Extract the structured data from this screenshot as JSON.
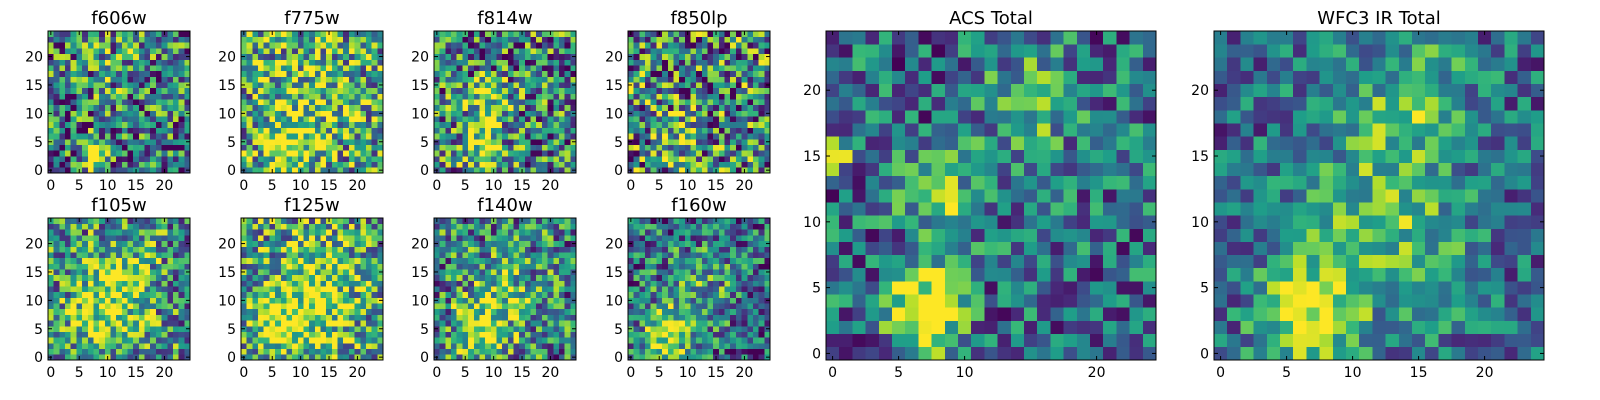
{
  "figure": {
    "background": "#ffffff",
    "colormap": "viridis"
  },
  "chart_data": [
    {
      "type": "heatmap",
      "title": "f606w",
      "grid": [
        25,
        25
      ],
      "xticks": [
        0,
        5,
        10,
        15,
        20
      ],
      "yticks": [
        0,
        5,
        10,
        15,
        20
      ],
      "xlim": [
        -0.5,
        24.5
      ],
      "ylim": [
        -0.5,
        24.5
      ],
      "seed": 11,
      "blobs": [
        {
          "x": 7.5,
          "y": 2.5,
          "sx": 1.2,
          "sy": 2.0,
          "amp": 0.95
        },
        {
          "x": 12,
          "y": 18,
          "sx": 5,
          "sy": 4,
          "amp": 0.2
        }
      ],
      "base": 0.4,
      "noise": 0.5,
      "cmin": 0.0,
      "cmax": 1.0
    },
    {
      "type": "heatmap",
      "title": "f775w",
      "grid": [
        25,
        25
      ],
      "xticks": [
        0,
        5,
        10,
        15,
        20
      ],
      "yticks": [
        0,
        5,
        10,
        15,
        20
      ],
      "xlim": [
        -0.5,
        24.5
      ],
      "ylim": [
        -0.5,
        24.5
      ],
      "seed": 23,
      "blobs": [
        {
          "x": 8,
          "y": 4,
          "sx": 3,
          "sy": 4,
          "amp": 0.4
        },
        {
          "x": 12,
          "y": 13,
          "sx": 7,
          "sy": 8,
          "amp": 0.2
        }
      ],
      "base": 0.55,
      "noise": 0.5,
      "cmin": 0.0,
      "cmax": 1.0
    },
    {
      "type": "heatmap",
      "title": "f814w",
      "grid": [
        25,
        25
      ],
      "xticks": [
        0,
        5,
        10,
        15,
        20
      ],
      "yticks": [
        0,
        5,
        10,
        15,
        20
      ],
      "xlim": [
        -0.5,
        24.5
      ],
      "ylim": [
        -0.5,
        24.5
      ],
      "seed": 37,
      "blobs": [
        {
          "x": 8,
          "y": 4,
          "sx": 2.5,
          "sy": 3.5,
          "amp": 0.5
        },
        {
          "x": 9,
          "y": 12,
          "sx": 3,
          "sy": 3,
          "amp": 0.3
        }
      ],
      "base": 0.45,
      "noise": 0.5,
      "cmin": 0.0,
      "cmax": 1.0
    },
    {
      "type": "heatmap",
      "title": "f850lp",
      "grid": [
        25,
        25
      ],
      "xticks": [
        0,
        5,
        10,
        15,
        20
      ],
      "yticks": [
        0,
        5,
        10,
        15,
        20
      ],
      "xlim": [
        -0.5,
        24.5
      ],
      "ylim": [
        -0.5,
        24.5
      ],
      "seed": 41,
      "blobs": [
        {
          "x": 8,
          "y": 5,
          "sx": 3,
          "sy": 4,
          "amp": 0.3
        },
        {
          "x": 0,
          "y": 15,
          "sx": 0.8,
          "sy": 0.8,
          "amp": 0.6
        }
      ],
      "base": 0.45,
      "noise": 0.55,
      "cmin": 0.0,
      "cmax": 1.0
    },
    {
      "type": "heatmap",
      "title": "f105w",
      "grid": [
        25,
        25
      ],
      "xticks": [
        0,
        5,
        10,
        15,
        20
      ],
      "yticks": [
        0,
        5,
        10,
        15,
        20
      ],
      "xlim": [
        -0.5,
        24.5
      ],
      "ylim": [
        -0.5,
        24.5
      ],
      "seed": 53,
      "blobs": [
        {
          "x": 9,
          "y": 7,
          "sx": 4,
          "sy": 5,
          "amp": 0.35
        },
        {
          "x": 13,
          "y": 14,
          "sx": 4,
          "sy": 5,
          "amp": 0.3
        }
      ],
      "base": 0.5,
      "noise": 0.45,
      "cmin": 0.0,
      "cmax": 1.0
    },
    {
      "type": "heatmap",
      "title": "f125w",
      "grid": [
        25,
        25
      ],
      "xticks": [
        0,
        5,
        10,
        15,
        20
      ],
      "yticks": [
        0,
        5,
        10,
        15,
        20
      ],
      "xlim": [
        -0.5,
        24.5
      ],
      "ylim": [
        -0.5,
        24.5
      ],
      "seed": 67,
      "blobs": [
        {
          "x": 8,
          "y": 6,
          "sx": 5,
          "sy": 6,
          "amp": 0.3
        },
        {
          "x": 14,
          "y": 13,
          "sx": 5,
          "sy": 6,
          "amp": 0.25
        }
      ],
      "base": 0.55,
      "noise": 0.45,
      "cmin": 0.0,
      "cmax": 1.0
    },
    {
      "type": "heatmap",
      "title": "f140w",
      "grid": [
        25,
        25
      ],
      "xticks": [
        0,
        5,
        10,
        15,
        20
      ],
      "yticks": [
        0,
        5,
        10,
        15,
        20
      ],
      "xlim": [
        -0.5,
        24.5
      ],
      "ylim": [
        -0.5,
        24.5
      ],
      "seed": 79,
      "blobs": [
        {
          "x": 7,
          "y": 4,
          "sx": 3,
          "sy": 4,
          "amp": 0.45
        },
        {
          "x": 12,
          "y": 11,
          "sx": 4,
          "sy": 5,
          "amp": 0.3
        }
      ],
      "base": 0.45,
      "noise": 0.45,
      "cmin": 0.0,
      "cmax": 1.0
    },
    {
      "type": "heatmap",
      "title": "f160w",
      "grid": [
        25,
        25
      ],
      "xticks": [
        0,
        5,
        10,
        15,
        20
      ],
      "yticks": [
        0,
        5,
        10,
        15,
        20
      ],
      "xlim": [
        -0.5,
        24.5
      ],
      "ylim": [
        -0.5,
        24.5
      ],
      "seed": 83,
      "blobs": [
        {
          "x": 6,
          "y": 3,
          "sx": 3,
          "sy": 4,
          "amp": 0.5
        },
        {
          "x": 12,
          "y": 12,
          "sx": 5,
          "sy": 6,
          "amp": 0.25
        }
      ],
      "base": 0.35,
      "noise": 0.4,
      "cmin": 0.0,
      "cmax": 1.0
    },
    {
      "type": "heatmap",
      "title": "ACS Total",
      "grid": [
        25,
        25
      ],
      "xticks": [
        0,
        5,
        10,
        20
      ],
      "yticks": [
        0,
        5,
        10,
        15,
        20
      ],
      "xlim": [
        -0.5,
        24.5
      ],
      "ylim": [
        -0.5,
        24.5
      ],
      "seed": 97,
      "blobs": [
        {
          "x": 7,
          "y": 3,
          "sx": 1.8,
          "sy": 2.2,
          "amp": 0.9
        },
        {
          "x": 8,
          "y": 12,
          "sx": 2,
          "sy": 2.2,
          "amp": 0.45
        },
        {
          "x": 15,
          "y": 19,
          "sx": 2.5,
          "sy": 3,
          "amp": 0.35
        },
        {
          "x": 0,
          "y": 15,
          "sx": 0.8,
          "sy": 0.6,
          "amp": 0.9
        }
      ],
      "base": 0.35,
      "noise": 0.35,
      "cmin": 0.0,
      "cmax": 1.0
    },
    {
      "type": "heatmap",
      "title": "WFC3 IR Total",
      "grid": [
        25,
        25
      ],
      "xticks": [
        0,
        5,
        10,
        15,
        20
      ],
      "yticks": [
        0,
        5,
        10,
        15,
        20
      ],
      "xlim": [
        -0.5,
        24.5
      ],
      "ylim": [
        -0.5,
        24.5
      ],
      "seed": 101,
      "blobs": [
        {
          "x": 6.5,
          "y": 3,
          "sx": 2.5,
          "sy": 3,
          "amp": 0.6
        },
        {
          "x": 13,
          "y": 11,
          "sx": 4,
          "sy": 6,
          "amp": 0.4
        },
        {
          "x": 15,
          "y": 20,
          "sx": 2.5,
          "sy": 2.5,
          "amp": 0.3
        }
      ],
      "base": 0.35,
      "noise": 0.3,
      "cmin": 0.0,
      "cmax": 1.0
    }
  ]
}
